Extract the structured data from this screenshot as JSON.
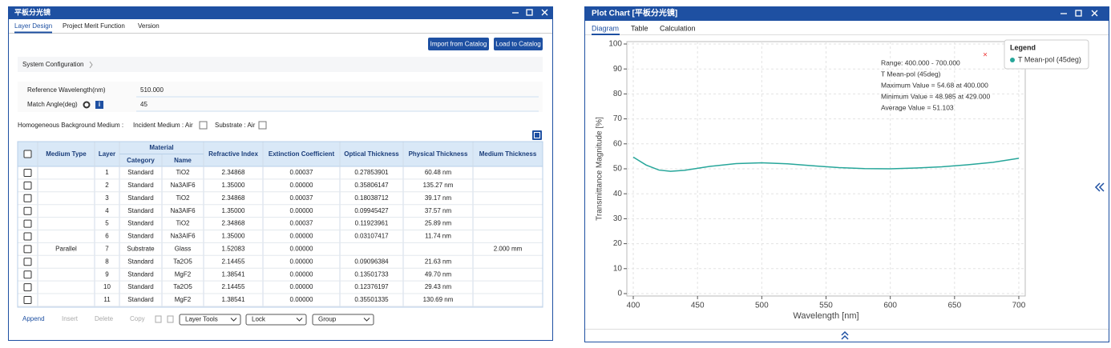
{
  "left_window": {
    "title": "平板分光镜",
    "tabs": [
      "Layer Design",
      "Project Merit Function",
      "Version"
    ],
    "buttons": [
      "Import from Catalog",
      "Load to Catalog"
    ],
    "system_configuration": "System Configuration",
    "fields": [
      {
        "label": "Reference Wavelength(nm)",
        "value": "510.000"
      },
      {
        "label": "Match Angle(deg)",
        "value": "45"
      }
    ],
    "background": {
      "label": "Homogeneous Background Medium :",
      "incident": "Incident Medium : Air",
      "substrate": "Substrate : Air"
    },
    "table": {
      "headers": {
        "medium_type": "Medium Type",
        "layer": "Layer",
        "material": "Material",
        "category": "Category",
        "name": "Name",
        "refractive_index": "Refractive Index",
        "extinction": "Extinction Coefficient",
        "optical": "Optical Thickness",
        "physical": "Physical Thickness",
        "medium_thickness": "Medium Thickness"
      },
      "rows": [
        [
          null,
          "1",
          "Standard",
          "TiO2",
          "2.34868",
          "0.00037",
          "0.27853901",
          "60.48 nm",
          null
        ],
        [
          null,
          "2",
          "Standard",
          "Na3AlF6",
          "1.35000",
          "0.00000",
          "0.35806147",
          "135.27 nm",
          null
        ],
        [
          null,
          "3",
          "Standard",
          "TiO2",
          "2.34868",
          "0.00037",
          "0.18038712",
          "39.17 nm",
          null
        ],
        [
          null,
          "4",
          "Standard",
          "Na3AlF6",
          "1.35000",
          "0.00000",
          "0.09945427",
          "37.57 nm",
          null
        ],
        [
          null,
          "5",
          "Standard",
          "TiO2",
          "2.34868",
          "0.00037",
          "0.11923961",
          "25.89 nm",
          null
        ],
        [
          null,
          "6",
          "Standard",
          "Na3AlF6",
          "1.35000",
          "0.00000",
          "0.03107417",
          "11.74 nm",
          null
        ],
        [
          "Parallel",
          "7",
          "Substrate",
          "Glass",
          "1.52083",
          "0.00000",
          null,
          null,
          "2.000 mm"
        ],
        [
          null,
          "8",
          "Standard",
          "Ta2O5",
          "2.14455",
          "0.00000",
          "0.09096384",
          "21.63 nm",
          null
        ],
        [
          null,
          "9",
          "Standard",
          "MgF2",
          "1.38541",
          "0.00000",
          "0.13501733",
          "49.70 nm",
          null
        ],
        [
          null,
          "10",
          "Standard",
          "Ta2O5",
          "2.14455",
          "0.00000",
          "0.12376197",
          "29.43 nm",
          null
        ],
        [
          null,
          "11",
          "Standard",
          "MgF2",
          "1.38541",
          "0.00000",
          "0.35501335",
          "130.69 nm",
          null
        ]
      ]
    },
    "toolbar": [
      "Append",
      "Insert",
      "Delete",
      "Copy"
    ],
    "dropdowns": [
      "Layer Tools",
      "Lock",
      "Group"
    ]
  },
  "right_window": {
    "title": "Plot Chart [平板分光镜]",
    "tabs": [
      "Diagram",
      "Table",
      "Calculation"
    ]
  },
  "chart_data": {
    "type": "line",
    "x_label": "Wavelength [nm]",
    "y_label": "Transmittance Magnitude [%]",
    "x": [
      400,
      410,
      420,
      429,
      440,
      460,
      480,
      500,
      520,
      540,
      560,
      580,
      600,
      620,
      640,
      660,
      680,
      700
    ],
    "series": [
      {
        "name": "T Mean-pol (45deg)",
        "color": "#26a69a",
        "values": [
          54.68,
          51.5,
          49.5,
          48.985,
          49.4,
          51.0,
          52.1,
          52.4,
          52.0,
          51.2,
          50.5,
          50.1,
          50.0,
          50.3,
          50.8,
          51.6,
          52.6,
          54.2
        ]
      }
    ],
    "xlim": [
      395,
      705
    ],
    "xticks": [
      400,
      450,
      500,
      550,
      600,
      650,
      700
    ],
    "ylim": [
      0,
      100
    ],
    "yticks": [
      0,
      10,
      20,
      30,
      40,
      50,
      60,
      70,
      80,
      90,
      100
    ],
    "grid": true,
    "legend_title": "Legend",
    "annotations": [
      "Range: 400.000 - 700.000",
      "T Mean-pol (45deg)",
      "Maximum Value = 54.68 at 400.000",
      "Minimum Value = 48.985 at 429.000",
      "Average Value = 51.103"
    ]
  }
}
